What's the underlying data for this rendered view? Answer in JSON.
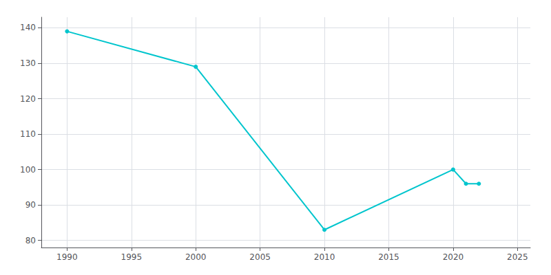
{
  "chart_data": {
    "type": "line",
    "x": [
      1990,
      2000,
      2010,
      2020,
      2021,
      2022
    ],
    "values": [
      139,
      129,
      83,
      100,
      96,
      96
    ],
    "color": "#00C5CD",
    "marker": "circle",
    "xlim": [
      1988,
      2026
    ],
    "ylim": [
      78,
      143
    ],
    "xticks": [
      1990,
      1995,
      2000,
      2005,
      2010,
      2015,
      2020,
      2025
    ],
    "yticks": [
      80,
      90,
      100,
      110,
      120,
      130,
      140
    ],
    "grid": true
  }
}
